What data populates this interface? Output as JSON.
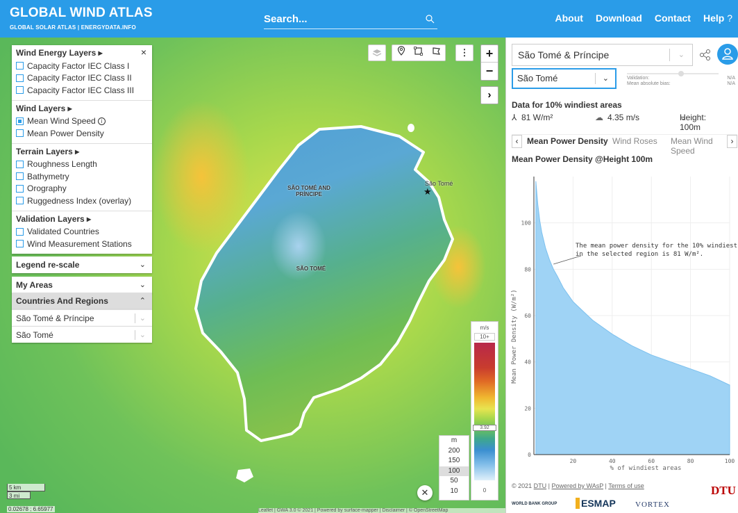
{
  "header": {
    "title": "GLOBAL WIND ATLAS",
    "subtitle": "GLOBAL SOLAR ATLAS | ENERGYDATA.INFO",
    "search_placeholder": "Search...",
    "nav": [
      "About",
      "Download",
      "Contact",
      "Help"
    ]
  },
  "layers": {
    "wind_energy": {
      "title": "Wind Energy Layers ▸",
      "items": [
        "Capacity Factor IEC Class I",
        "Capacity Factor IEC Class II",
        "Capacity Factor IEC Class III"
      ]
    },
    "wind": {
      "title": "Wind Layers ▸",
      "items": [
        "Mean Wind Speed",
        "Mean Power Density"
      ],
      "checked": "Mean Wind Speed"
    },
    "terrain": {
      "title": "Terrain Layers ▸",
      "items": [
        "Roughness Length",
        "Bathymetry",
        "Orography",
        "Ruggedness Index (overlay)"
      ]
    },
    "validation": {
      "title": "Validation Layers ▸",
      "items": [
        "Validated Countries",
        "Wind Measurement Stations"
      ]
    }
  },
  "accordions": {
    "legend_rescale": "Legend re-scale",
    "my_areas": "My Areas",
    "countries_regions": "Countries And Regions",
    "country": "São Tomé & Príncipe",
    "region": "São Tomé"
  },
  "map": {
    "labels": {
      "country": "SÃO TOMÉ AND PRÍNCIPE",
      "region": "SÃO TOMÉ",
      "city": "São Tomé"
    },
    "legend_unit": "m/s",
    "legend_max": "10+",
    "legend_marker": "3.92",
    "legend_min": "0",
    "height_unit": "m",
    "heights": [
      "200",
      "150",
      "100",
      "50",
      "10"
    ],
    "selected_height": "100",
    "scale_km": "5 km",
    "scale_mi": "3 mi",
    "coordinates": "0.02678 ; 6.65977",
    "attribution": "Leaflet | GWA 3.0 © 2021 | Powered by surface-mapper | Disclaimer | © OpenStreetMap"
  },
  "right_panel": {
    "country": "São Tomé & Príncipe",
    "region": "São Tomé",
    "validation_label": "Validation:",
    "validation_value": "N/A",
    "bias_label": "Mean absolute bias:",
    "bias_value": "N/A",
    "windiest_title": "Data for 10% windiest areas",
    "power_density": "81 W/m²",
    "wind_speed": "4.35 m/s",
    "height": "Height: 100m",
    "tabs": [
      "Mean Power Density",
      "Wind Roses",
      "Mean Wind Speed"
    ],
    "chart_title": "Mean Power Density @Height 100m",
    "footer": {
      "copyright": "© 2021",
      "dtu": "DTU",
      "wasp": "Powered by WAsP",
      "terms": "Terms of use"
    },
    "logos": {
      "wbg": "WORLD BANK GROUP",
      "esmap": "ESMAP",
      "vortex": "VORTEX",
      "dtu": "DTU"
    }
  },
  "chart_data": {
    "type": "area",
    "xlabel": "% of windiest areas",
    "ylabel": "Mean Power Density (W/m²)",
    "xlim": [
      0,
      100
    ],
    "ylim": [
      0,
      120
    ],
    "xticks": [
      "20",
      "40",
      "60",
      "80",
      "100"
    ],
    "yticks": [
      "0",
      "20",
      "40",
      "60",
      "80",
      "100"
    ],
    "annotation": "The mean power density for the 10% windiest in the selected region is 81 W/m².",
    "x": [
      1,
      2,
      3,
      4,
      6,
      8,
      10,
      12,
      15,
      20,
      25,
      30,
      40,
      50,
      60,
      70,
      80,
      90,
      100
    ],
    "y": [
      118,
      108,
      101,
      96,
      89,
      84,
      80,
      77,
      72,
      66,
      62,
      58,
      52,
      47,
      43,
      40,
      37,
      34,
      30
    ],
    "color": "#9fd3f5"
  }
}
